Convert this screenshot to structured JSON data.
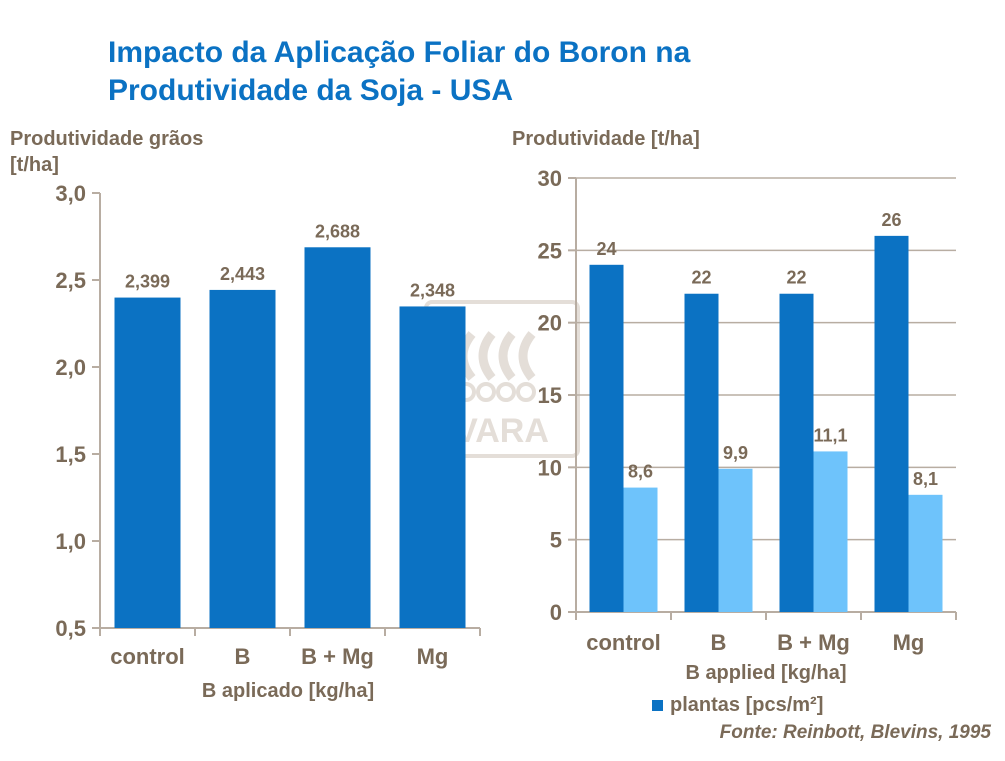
{
  "title_line1": "Impacto da Aplicação Foliar do Boron na",
  "title_line2": "Produtividade da Soja - USA",
  "watermark_text": "VARA",
  "source": "Fonte: Reinbott, Blevins, 1995",
  "colors": {
    "title": "#0b72c3",
    "text": "#7a6a58",
    "bar_dark": "#0b72c3",
    "bar_light": "#6ec3fb",
    "axis": "#b8ada2"
  },
  "chart_data": [
    {
      "type": "bar",
      "ylabel_line1": "Produtividade grãos",
      "ylabel_line2": "[t/ha]",
      "xlabel": "B aplicado [kg/ha]",
      "categories": [
        "control",
        "B",
        "B + Mg",
        "Mg"
      ],
      "values": [
        2.399,
        2.443,
        2.688,
        2.348
      ],
      "data_labels": [
        "2,399",
        "2,443",
        "2,688",
        "2,348"
      ],
      "ylim": [
        0.5,
        3.0
      ],
      "yticks": [
        0.5,
        1.0,
        1.5,
        2.0,
        2.5,
        3.0
      ],
      "ytick_labels": [
        "0,5",
        "1,0",
        "1,5",
        "2,0",
        "2,5",
        "3,0"
      ],
      "grid": false
    },
    {
      "type": "bar",
      "ylabel": "Produtividade [t/ha]",
      "xlabel": "B applied [kg/ha]",
      "categories": [
        "control",
        "B",
        "B + Mg",
        "Mg"
      ],
      "series": [
        {
          "name": "plantas [pcs/m²]",
          "values": [
            24,
            22,
            22,
            26
          ],
          "data_labels": [
            "24",
            "22",
            "22",
            "26"
          ]
        },
        {
          "values": [
            8.6,
            9.9,
            11.1,
            8.1
          ],
          "data_labels": [
            "8,6",
            "9,9",
            "11,1",
            "8,1"
          ]
        }
      ],
      "ylim": [
        0,
        30
      ],
      "yticks": [
        0,
        5,
        10,
        15,
        20,
        25,
        30
      ],
      "ytick_labels": [
        "0",
        "5",
        "10",
        "15",
        "20",
        "25",
        "30"
      ],
      "grid": true,
      "legend_position": "bottom"
    }
  ]
}
